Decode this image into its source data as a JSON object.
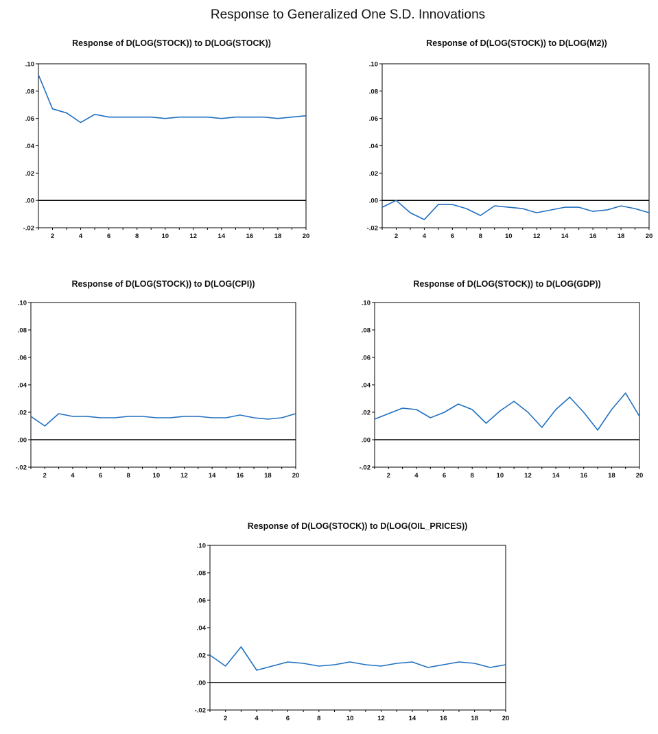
{
  "figure": {
    "title": "Response to Generalized One S.D. Innovations",
    "line_color": "#1f6fc0"
  },
  "chart_data": [
    {
      "type": "line",
      "title": "Response of D(LOG(STOCK)) to D(LOG(STOCK))",
      "x": [
        1,
        2,
        3,
        4,
        5,
        6,
        7,
        8,
        9,
        10,
        11,
        12,
        13,
        14,
        15,
        16,
        17,
        18,
        19,
        20
      ],
      "xticks": [
        2,
        4,
        6,
        8,
        10,
        12,
        14,
        16,
        18,
        20
      ],
      "ylim": [
        -0.02,
        0.1
      ],
      "yticks": [
        ".10",
        ".08",
        ".06",
        ".04",
        ".02",
        ".00",
        "-.02"
      ],
      "ytick_values": [
        0.1,
        0.08,
        0.06,
        0.04,
        0.02,
        0.0,
        -0.02
      ],
      "series": [
        {
          "values": [
            0.092,
            0.067,
            0.064,
            0.057,
            0.063,
            0.061,
            0.061,
            0.061,
            0.061,
            0.06,
            0.061,
            0.061,
            0.061,
            0.06,
            0.061,
            0.061,
            0.061,
            0.06,
            0.061,
            0.062
          ]
        }
      ]
    },
    {
      "type": "line",
      "title": "Response of D(LOG(STOCK)) to D(LOG(M2))",
      "x": [
        1,
        2,
        3,
        4,
        5,
        6,
        7,
        8,
        9,
        10,
        11,
        12,
        13,
        14,
        15,
        16,
        17,
        18,
        19,
        20
      ],
      "xticks": [
        2,
        4,
        6,
        8,
        10,
        12,
        14,
        16,
        18,
        20
      ],
      "ylim": [
        -0.02,
        0.1
      ],
      "yticks": [
        ".10",
        ".08",
        ".06",
        ".04",
        ".02",
        ".00",
        "-.02"
      ],
      "ytick_values": [
        0.1,
        0.08,
        0.06,
        0.04,
        0.02,
        0.0,
        -0.02
      ],
      "series": [
        {
          "values": [
            -0.005,
            0.0,
            -0.009,
            -0.014,
            -0.003,
            -0.003,
            -0.006,
            -0.011,
            -0.004,
            -0.005,
            -0.006,
            -0.009,
            -0.007,
            -0.005,
            -0.005,
            -0.008,
            -0.007,
            -0.004,
            -0.006,
            -0.009
          ]
        }
      ]
    },
    {
      "type": "line",
      "title": "Response of D(LOG(STOCK)) to D(LOG(CPI))",
      "x": [
        1,
        2,
        3,
        4,
        5,
        6,
        7,
        8,
        9,
        10,
        11,
        12,
        13,
        14,
        15,
        16,
        17,
        18,
        19,
        20
      ],
      "xticks": [
        2,
        4,
        6,
        8,
        10,
        12,
        14,
        16,
        18,
        20
      ],
      "ylim": [
        -0.02,
        0.1
      ],
      "yticks": [
        ".10",
        ".08",
        ".06",
        ".04",
        ".02",
        ".00",
        "-.02"
      ],
      "ytick_values": [
        0.1,
        0.08,
        0.06,
        0.04,
        0.02,
        0.0,
        -0.02
      ],
      "series": [
        {
          "values": [
            0.017,
            0.01,
            0.019,
            0.017,
            0.017,
            0.016,
            0.016,
            0.017,
            0.017,
            0.016,
            0.016,
            0.017,
            0.017,
            0.016,
            0.016,
            0.018,
            0.016,
            0.015,
            0.016,
            0.019
          ]
        }
      ]
    },
    {
      "type": "line",
      "title": "Response of D(LOG(STOCK)) to D(LOG(GDP))",
      "x": [
        1,
        2,
        3,
        4,
        5,
        6,
        7,
        8,
        9,
        10,
        11,
        12,
        13,
        14,
        15,
        16,
        17,
        18,
        19,
        20
      ],
      "xticks": [
        2,
        4,
        6,
        8,
        10,
        12,
        14,
        16,
        18,
        20
      ],
      "ylim": [
        -0.02,
        0.1
      ],
      "yticks": [
        ".10",
        ".08",
        ".06",
        ".04",
        ".02",
        ".00",
        "-.02"
      ],
      "ytick_values": [
        0.1,
        0.08,
        0.06,
        0.04,
        0.02,
        0.0,
        -0.02
      ],
      "series": [
        {
          "values": [
            0.015,
            0.019,
            0.023,
            0.022,
            0.016,
            0.02,
            0.026,
            0.022,
            0.012,
            0.021,
            0.028,
            0.02,
            0.009,
            0.022,
            0.031,
            0.02,
            0.007,
            0.022,
            0.034,
            0.017
          ]
        }
      ]
    },
    {
      "type": "line",
      "title": "Response of D(LOG(STOCK)) to D(LOG(OIL_PRICES))",
      "x": [
        1,
        2,
        3,
        4,
        5,
        6,
        7,
        8,
        9,
        10,
        11,
        12,
        13,
        14,
        15,
        16,
        17,
        18,
        19,
        20
      ],
      "xticks": [
        2,
        4,
        6,
        8,
        10,
        12,
        14,
        16,
        18,
        20
      ],
      "ylim": [
        -0.02,
        0.1
      ],
      "yticks": [
        ".10",
        ".08",
        ".06",
        ".04",
        ".02",
        ".00",
        "-.02"
      ],
      "ytick_values": [
        0.1,
        0.08,
        0.06,
        0.04,
        0.02,
        0.0,
        -0.02
      ],
      "series": [
        {
          "values": [
            0.02,
            0.012,
            0.026,
            0.009,
            0.012,
            0.015,
            0.014,
            0.012,
            0.013,
            0.015,
            0.013,
            0.012,
            0.014,
            0.015,
            0.011,
            0.013,
            0.015,
            0.014,
            0.011,
            0.013
          ]
        }
      ]
    }
  ]
}
